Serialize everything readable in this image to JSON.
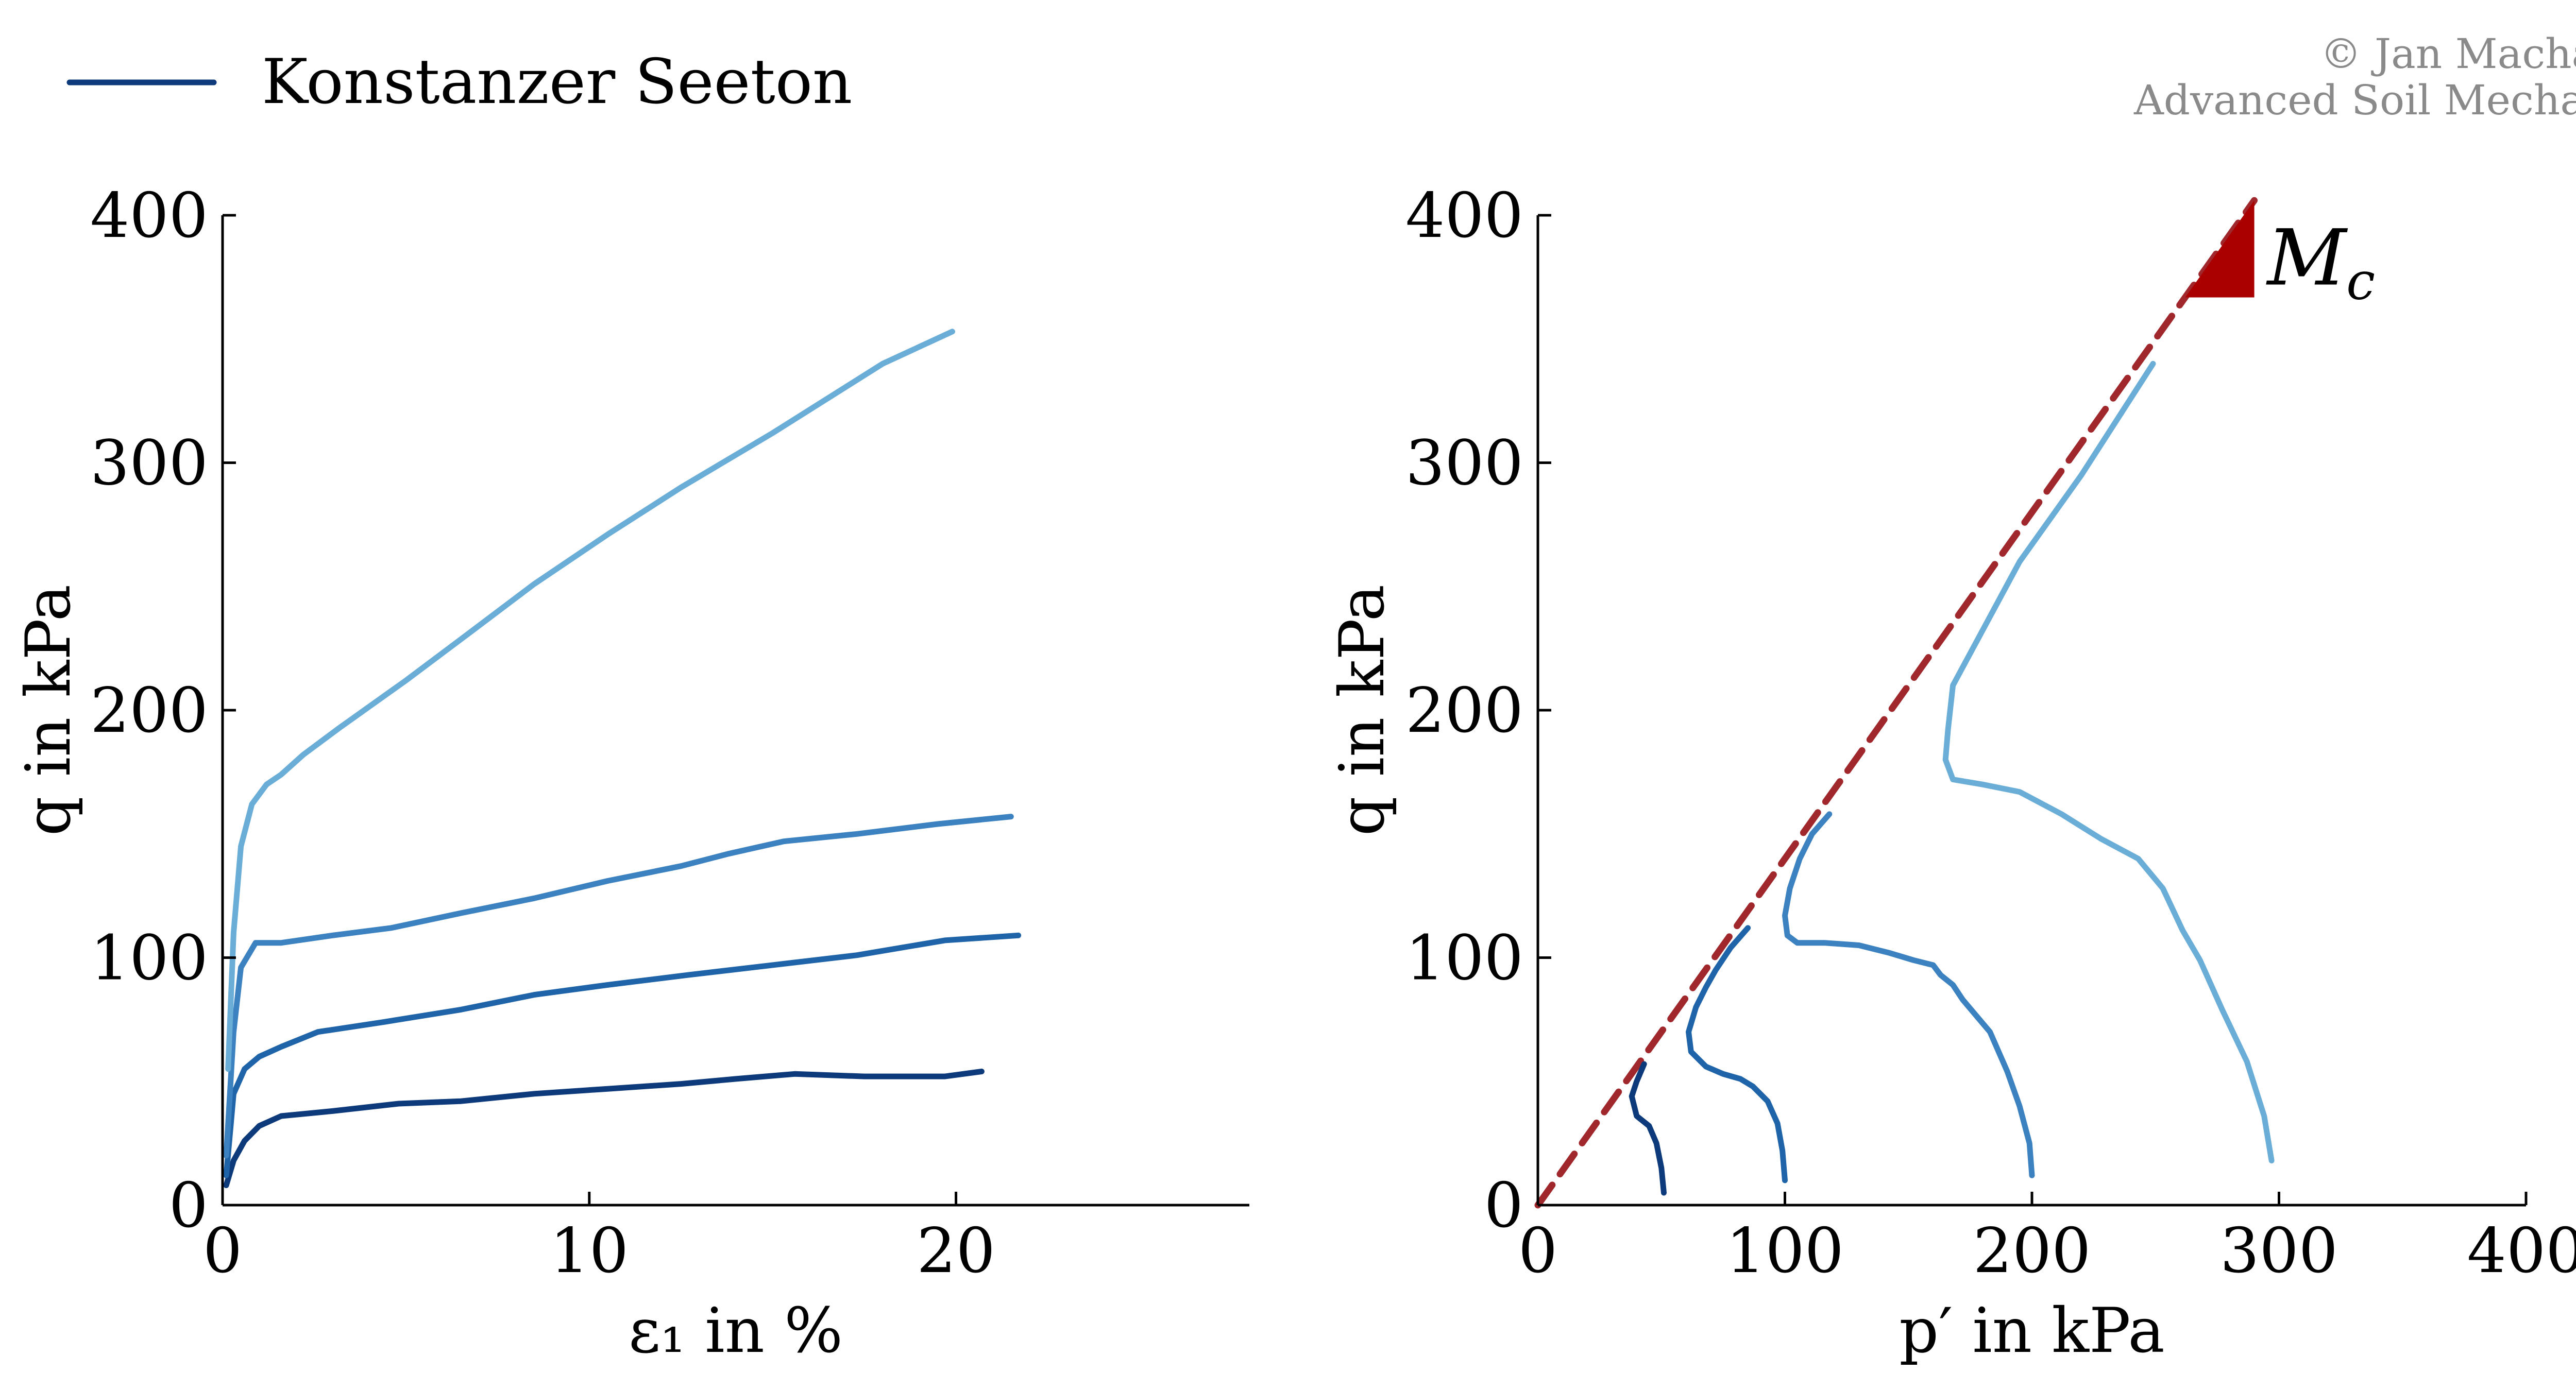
{
  "legend": {
    "label": "Konstanzer Seeton",
    "color": "#0d3a7a"
  },
  "credit": {
    "line1": "© Jan Machaček",
    "line2": "Advanced Soil Mechanics"
  },
  "colors": {
    "dark": "#0d3a7a",
    "medium": "#1f63a8",
    "mid_light": "#3c82c0",
    "light": "#6aaed8",
    "csl": "#a0282c",
    "csl_triangle": "#aa0000"
  },
  "chart_data": [
    {
      "type": "line",
      "xlabel": "ε₁ in %",
      "ylabel": "q in kPa",
      "xlim": [
        0,
        28
      ],
      "ylim": [
        0,
        400
      ],
      "xticks": [
        "0",
        "10",
        "20"
      ],
      "yticks": [
        "0",
        "100",
        "200",
        "300",
        "400"
      ],
      "grid": false,
      "legend_placement": "top-left",
      "series": [
        {
          "name": "Konstanzer Seeton",
          "color": "dark",
          "x": [
            0.1,
            0.3,
            0.6,
            1.0,
            1.6,
            3.0,
            4.8,
            6.5,
            8.5,
            10.5,
            12.5,
            14.0,
            15.6,
            17.5,
            19.7,
            20.7
          ],
          "y": [
            8,
            18,
            26,
            32,
            36,
            38,
            41,
            42,
            45,
            47,
            49,
            51,
            53,
            52,
            52,
            54
          ]
        },
        {
          "color": "medium",
          "x": [
            0.1,
            0.3,
            0.6,
            1.0,
            1.6,
            2.6,
            4.4,
            6.5,
            8.5,
            10.5,
            12.7,
            15.0,
            17.3,
            19.7,
            21.7
          ],
          "y": [
            12,
            45,
            55,
            60,
            64,
            70,
            74,
            79,
            85,
            89,
            93,
            97,
            101,
            107,
            109
          ]
        },
        {
          "color": "mid_light",
          "x": [
            0.1,
            0.3,
            0.5,
            0.9,
            1.6,
            3.0,
            4.6,
            6.5,
            8.5,
            10.5,
            12.5,
            13.8,
            15.3,
            17.3,
            19.5,
            21.5
          ],
          "y": [
            20,
            70,
            96,
            106,
            106,
            109,
            112,
            118,
            124,
            131,
            137,
            142,
            147,
            150,
            154,
            157
          ]
        },
        {
          "color": "light",
          "x": [
            0.15,
            0.3,
            0.5,
            0.8,
            1.2,
            1.6,
            2.2,
            3.2,
            5.0,
            6.8,
            8.5,
            10.5,
            12.5,
            15.0,
            18.0,
            19.9
          ],
          "y": [
            55,
            110,
            145,
            162,
            170,
            174,
            182,
            193,
            212,
            232,
            251,
            271,
            290,
            312,
            340,
            353
          ]
        }
      ]
    },
    {
      "type": "line",
      "xlabel": "p′ in kPa",
      "ylabel": "q in kPa",
      "xlim": [
        0,
        400
      ],
      "ylim": [
        0,
        400
      ],
      "xticks": [
        "0",
        "100",
        "200",
        "300",
        "400"
      ],
      "yticks": [
        "0",
        "100",
        "200",
        "300",
        "400"
      ],
      "grid": false,
      "csl": {
        "label": "M_c",
        "label_main": "M",
        "label_sub": "c",
        "slope": 1.4,
        "x_end": 290,
        "color": "csl"
      },
      "series": [
        {
          "color": "dark",
          "x": [
            51,
            50,
            48,
            45,
            40,
            38,
            40,
            43
          ],
          "y": [
            5,
            15,
            25,
            32,
            36,
            44,
            50,
            57
          ]
        },
        {
          "color": "medium",
          "x": [
            100,
            99,
            97,
            93,
            87,
            82,
            75,
            68,
            62,
            61,
            64,
            68,
            72,
            78,
            85
          ],
          "y": [
            10,
            22,
            33,
            42,
            48,
            51,
            53,
            56,
            62,
            70,
            80,
            88,
            95,
            104,
            112
          ]
        },
        {
          "color": "mid_light",
          "x": [
            200,
            199,
            195,
            190,
            183,
            172,
            168,
            163,
            160,
            152,
            142,
            130,
            116,
            105,
            101,
            100,
            102,
            106,
            111,
            118
          ],
          "y": [
            12,
            25,
            40,
            54,
            70,
            83,
            89,
            93,
            97,
            99,
            102,
            105,
            106,
            106,
            109,
            117,
            128,
            140,
            150,
            158
          ]
        },
        {
          "color": "light",
          "x": [
            297,
            294,
            287,
            277,
            268,
            261,
            253,
            243,
            228,
            212,
            195,
            180,
            168,
            165,
            166,
            168,
            195,
            220,
            249
          ],
          "y": [
            18,
            36,
            58,
            79,
            99,
            111,
            128,
            140,
            148,
            158,
            167,
            170,
            172,
            180,
            192,
            210,
            260,
            295,
            340
          ]
        }
      ]
    }
  ]
}
